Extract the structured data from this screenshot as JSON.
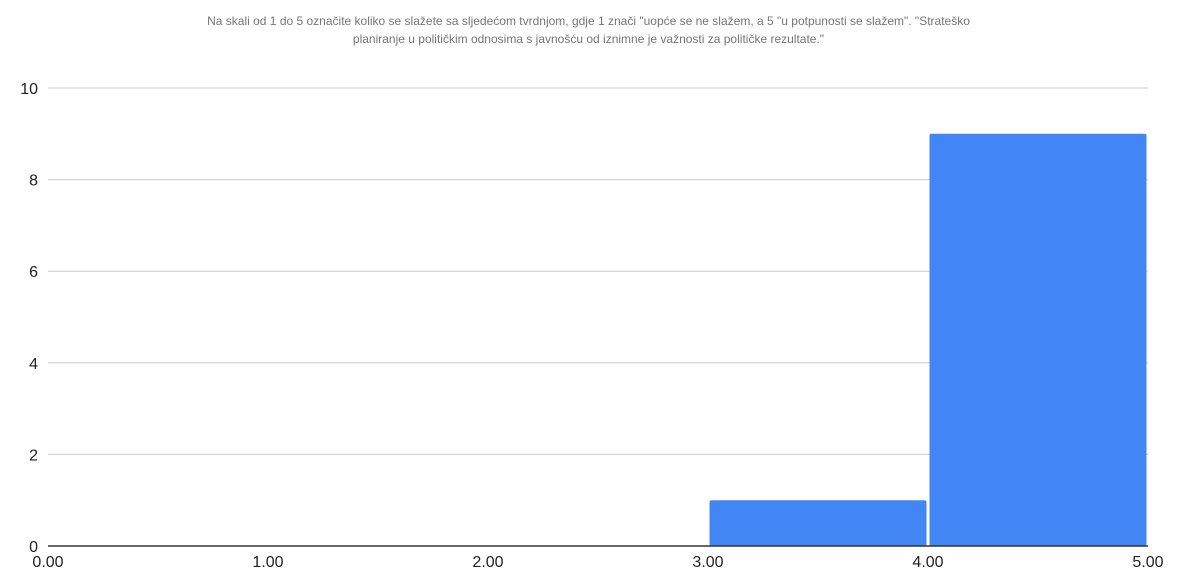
{
  "chart_data": {
    "type": "bar",
    "title_lines": [
      "Na skali od 1 do 5 označite koliko se slažete sa sljedećom tvrdnjom, gdje 1 znači \"uopće se ne slažem, a 5 \"u potpunosti se slažem\". \"Strateško",
      "planiranje u političkim odnosima s javnošću od iznimne je važnosti za političke rezultate.\""
    ],
    "bins": [
      {
        "x0": 0,
        "x1": 1,
        "value": 0
      },
      {
        "x0": 1,
        "x1": 2,
        "value": 0
      },
      {
        "x0": 2,
        "x1": 3,
        "value": 0
      },
      {
        "x0": 3,
        "x1": 4,
        "value": 1
      },
      {
        "x0": 4,
        "x1": 5,
        "value": 9
      }
    ],
    "xlim": [
      0,
      5
    ],
    "ylim": [
      0,
      10
    ],
    "x_ticks": [
      "0.00",
      "1.00",
      "2.00",
      "3.00",
      "4.00",
      "5.00"
    ],
    "y_ticks": [
      "0",
      "2",
      "4",
      "6",
      "8",
      "10"
    ],
    "xlabel": "",
    "ylabel": "",
    "grid": true,
    "legend": "none",
    "bar_color": "#4285f4",
    "grid_color": "#cccccc",
    "axis_color": "#333333"
  }
}
